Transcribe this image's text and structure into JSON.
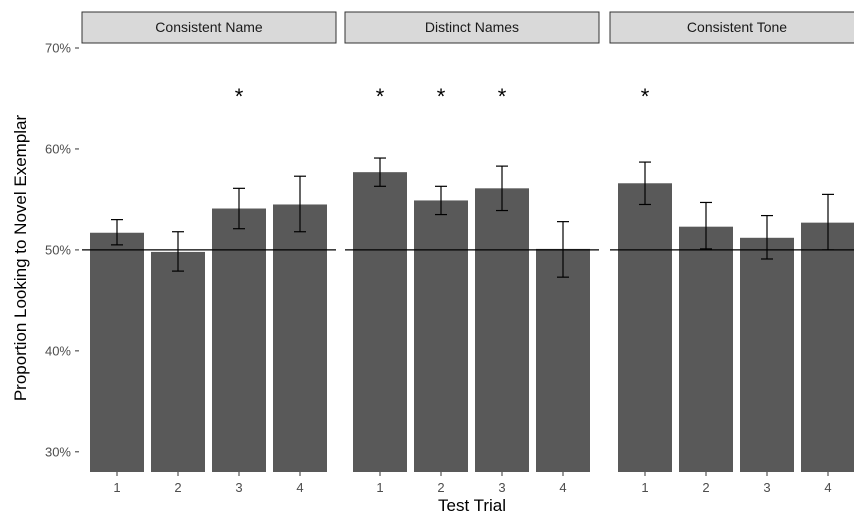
{
  "chart_data": {
    "type": "bar",
    "xlabel": "Test Trial",
    "ylabel": "Proportion Looking to Novel Exemplar",
    "ylim": [
      0.28,
      0.7
    ],
    "yticks": [
      0.3,
      0.4,
      0.5,
      0.6,
      0.7
    ],
    "ytick_labels": [
      "30%",
      "40%",
      "50%",
      "60%",
      "70%"
    ],
    "reference_line": 0.5,
    "bar_color": "#595959",
    "grid": false,
    "categories": [
      "1",
      "2",
      "3",
      "4"
    ],
    "panels": [
      {
        "name": "Consistent Name",
        "values": [
          0.517,
          0.498,
          0.541,
          0.545
        ],
        "error_low": [
          0.505,
          0.479,
          0.521,
          0.518
        ],
        "error_high": [
          0.53,
          0.518,
          0.561,
          0.573
        ],
        "significant": [
          false,
          false,
          true,
          false
        ]
      },
      {
        "name": "Distinct Names",
        "values": [
          0.577,
          0.549,
          0.561,
          0.501
        ],
        "error_low": [
          0.563,
          0.535,
          0.539,
          0.473
        ],
        "error_high": [
          0.591,
          0.563,
          0.583,
          0.528
        ],
        "significant": [
          true,
          true,
          true,
          false
        ]
      },
      {
        "name": "Consistent Tone",
        "values": [
          0.566,
          0.523,
          0.512,
          0.527
        ],
        "error_low": [
          0.545,
          0.501,
          0.491,
          0.5
        ],
        "error_high": [
          0.587,
          0.547,
          0.534,
          0.555
        ],
        "significant": [
          true,
          false,
          false,
          false
        ]
      }
    ],
    "significance_marker": "*"
  }
}
